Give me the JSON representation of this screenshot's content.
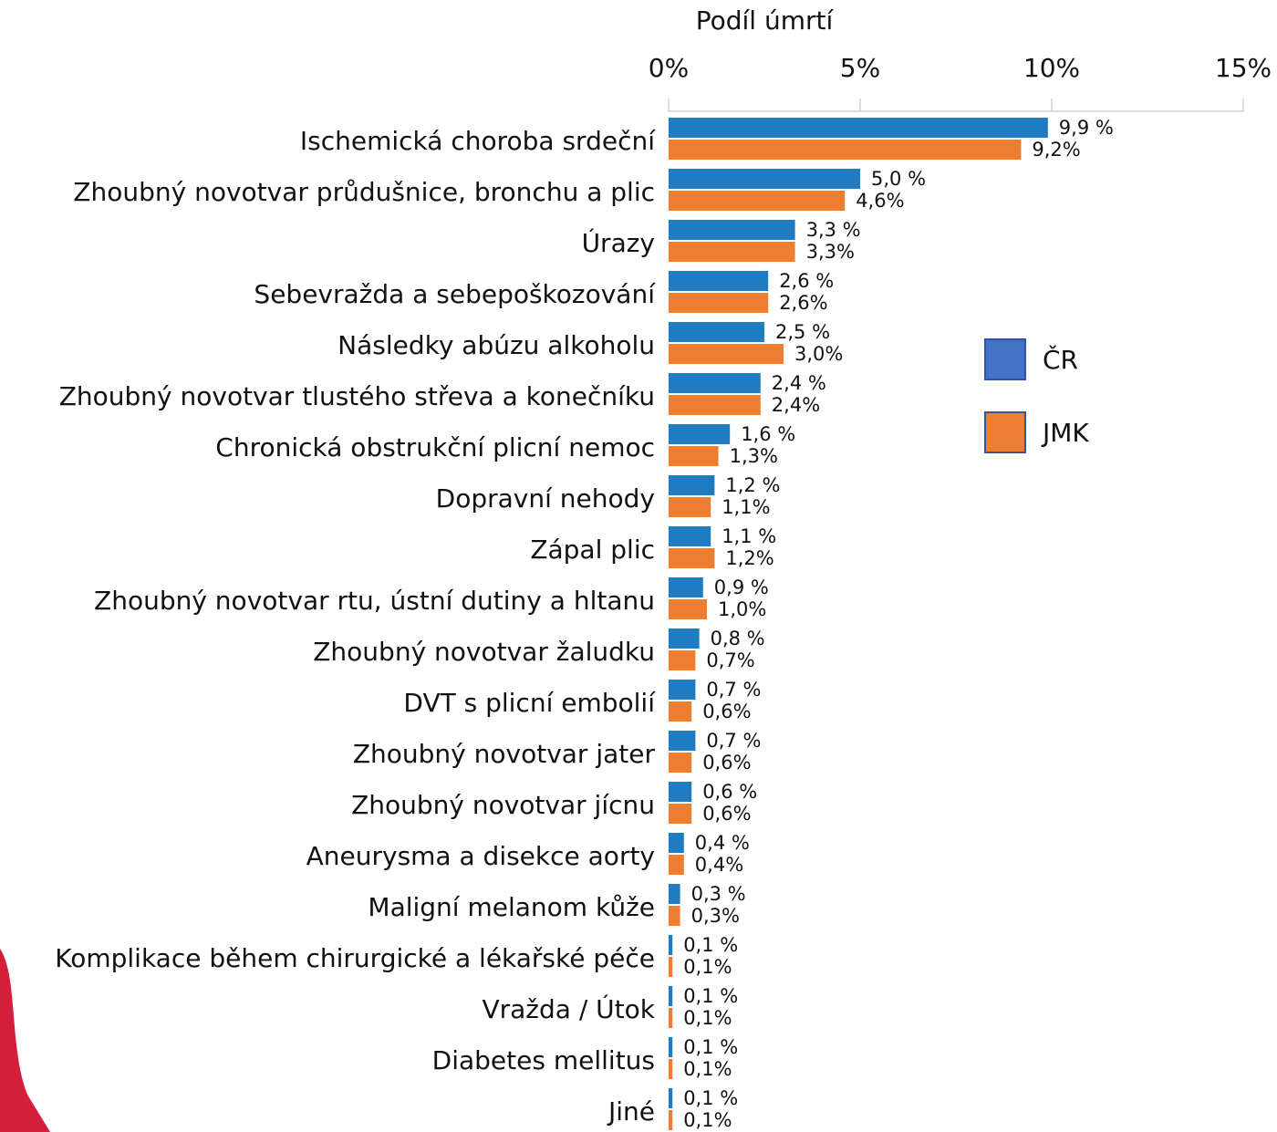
{
  "chart_data": {
    "type": "bar",
    "orientation": "horizontal",
    "x_label": "Podíl úmrtí",
    "categories": [
      "Ischemická choroba srdeční",
      "Zhoubný novotvar průdušnice, bronchu a plic",
      "Úrazy",
      "Sebevražda a sebepoškozování",
      "Následky abúzu alkoholu",
      "Zhoubný novotvar tlustého střeva a konečníku",
      "Chronická obstrukční plicní nemoc",
      "Dopravní nehody",
      "Zápal plic",
      "Zhoubný novotvar rtu, ústní dutiny a hltanu",
      "Zhoubný novotvar žaludku",
      "DVT s plicní embolií",
      "Zhoubný novotvar jater",
      "Zhoubný novotvar jícnu",
      "Aneurysma a disekce aorty",
      "Maligní melanom kůže",
      "Komplikace během chirurgické a lékařské péče",
      "Vražda / Útok",
      "Diabetes mellitus",
      "Jiné"
    ],
    "series": [
      {
        "name": "ČR",
        "color": "#1f7bc1",
        "legend_color": "#4472c4",
        "values": [
          9.9,
          5.0,
          3.3,
          2.6,
          2.5,
          2.4,
          1.6,
          1.2,
          1.1,
          0.9,
          0.8,
          0.7,
          0.7,
          0.6,
          0.4,
          0.3,
          0.1,
          0.1,
          0.1,
          0.1
        ],
        "value_labels": [
          "9,9 %",
          "5,0 %",
          "3,3 %",
          "2,6 %",
          "2,5 %",
          "2,4 %",
          "1,6 %",
          "1,2 %",
          "1,1 %",
          "0,9 %",
          "0,8 %",
          "0,7 %",
          "0,7 %",
          "0,6 %",
          "0,4 %",
          "0,3 %",
          "0,1 %",
          "0,1 %",
          "0,1 %",
          "0,1 %"
        ]
      },
      {
        "name": "JMK",
        "color": "#ed7d31",
        "legend_color": "#ed7d31",
        "values": [
          9.2,
          4.6,
          3.3,
          2.6,
          3.0,
          2.4,
          1.3,
          1.1,
          1.2,
          1.0,
          0.7,
          0.6,
          0.6,
          0.6,
          0.4,
          0.3,
          0.1,
          0.1,
          0.1,
          0.1
        ],
        "value_labels": [
          "9,2%",
          "4,6%",
          "3,3%",
          "2,6%",
          "3,0%",
          "2,4%",
          "1,3%",
          "1,1%",
          "1,2%",
          "1,0%",
          "0,7%",
          "0,6%",
          "0,6%",
          "0,6%",
          "0,4%",
          "0,3%",
          "0,1%",
          "0,1%",
          "0,1%",
          "0,1%"
        ]
      }
    ],
    "xlim": [
      0,
      15
    ],
    "xticks": [
      {
        "value": 0,
        "label": "0%"
      },
      {
        "value": 5,
        "label": "5%"
      },
      {
        "value": 10,
        "label": "10%"
      },
      {
        "value": 15,
        "label": "15%"
      }
    ],
    "legend": "right",
    "grid": false
  }
}
